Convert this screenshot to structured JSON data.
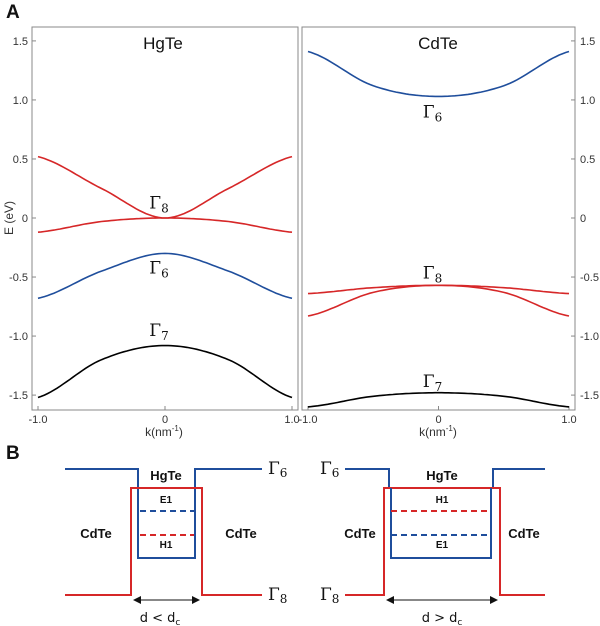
{
  "figure": {
    "panel_a_label": "A",
    "panel_b_label": "B"
  },
  "chart_data": [
    {
      "type": "line",
      "title": "HgTe",
      "xlabel": "k(nm",
      "xlabel_sup": "-1",
      "xlabel_end": ")",
      "ylabel": "E (eV)",
      "xlim": [
        -1.0,
        1.0
      ],
      "ylim": [
        -1.55,
        1.55
      ],
      "x_ticks": [
        "-1.0",
        "0",
        "1.0"
      ],
      "y_ticks": [
        "1.5",
        "1.0",
        "0.5",
        "0",
        "-0.5",
        "-1.0",
        "-1.5"
      ],
      "series": [
        {
          "name": "Γ8 upper",
          "color": "#d62728",
          "x": [
            -1.0,
            -0.5,
            0.0,
            0.5,
            1.0
          ],
          "y": [
            0.52,
            0.25,
            0.0,
            0.25,
            0.52
          ]
        },
        {
          "name": "Γ8 lower",
          "color": "#d62728",
          "x": [
            -1.0,
            -0.5,
            0.0,
            0.5,
            1.0
          ],
          "y": [
            -0.12,
            -0.03,
            0.0,
            -0.03,
            -0.12
          ]
        },
        {
          "name": "Γ6",
          "color": "#1f4e9c",
          "x": [
            -1.0,
            -0.5,
            0.0,
            0.5,
            1.0
          ],
          "y": [
            -0.68,
            -0.45,
            -0.3,
            -0.45,
            -0.68
          ]
        },
        {
          "name": "Γ7",
          "color": "#000000",
          "x": [
            -1.0,
            -0.5,
            0.0,
            0.5,
            1.0
          ],
          "y": [
            -1.52,
            -1.2,
            -1.08,
            -1.2,
            -1.52
          ]
        }
      ],
      "annotations": [
        {
          "text": "Γ",
          "sub": "8",
          "x": 0.0,
          "y": 0.13
        },
        {
          "text": "Γ",
          "sub": "6",
          "x": 0.0,
          "y": -0.42
        },
        {
          "text": "Γ",
          "sub": "7",
          "x": 0.0,
          "y": -0.95
        }
      ]
    },
    {
      "type": "line",
      "title": "CdTe",
      "xlabel": "k(nm",
      "xlabel_sup": "-1",
      "xlabel_end": ")",
      "ylabel": "",
      "xlim": [
        -1.0,
        1.0
      ],
      "ylim": [
        -1.55,
        1.55
      ],
      "x_ticks": [
        "-1.0",
        "0",
        "1.0"
      ],
      "y_ticks": [
        "1.5",
        "1.0",
        "0.5",
        "0",
        "-0.5",
        "-1.0",
        "-1.5"
      ],
      "series": [
        {
          "name": "Γ6",
          "color": "#1f4e9c",
          "x": [
            -1.0,
            -0.5,
            0.0,
            0.5,
            1.0
          ],
          "y": [
            1.41,
            1.12,
            1.03,
            1.12,
            1.41
          ]
        },
        {
          "name": "Γ8 upper",
          "color": "#d62728",
          "x": [
            -1.0,
            -0.5,
            0.0,
            0.5,
            1.0
          ],
          "y": [
            -0.64,
            -0.59,
            -0.57,
            -0.59,
            -0.64
          ]
        },
        {
          "name": "Γ8 lower",
          "color": "#d62728",
          "x": [
            -1.0,
            -0.5,
            0.0,
            0.5,
            1.0
          ],
          "y": [
            -0.83,
            -0.63,
            -0.57,
            -0.63,
            -0.83
          ]
        },
        {
          "name": "Γ7",
          "color": "#000000",
          "x": [
            -1.0,
            -0.5,
            0.0,
            0.5,
            1.0
          ],
          "y": [
            -1.6,
            -1.51,
            -1.48,
            -1.51,
            -1.6
          ]
        }
      ],
      "annotations": [
        {
          "text": "Γ",
          "sub": "6",
          "x": 0.0,
          "y": 0.9
        },
        {
          "text": "Γ",
          "sub": "8",
          "x": 0.0,
          "y": -0.46
        },
        {
          "text": "Γ",
          "sub": "7",
          "x": 0.0,
          "y": -1.38
        }
      ]
    }
  ],
  "diagrams": [
    {
      "name": "normal-regime",
      "well": "HgTe",
      "barrier_left": "CdTe",
      "barrier_right": "CdTe",
      "gamma_symbol": "Γ",
      "top_band_sub": "6",
      "bottom_band_sub": "8",
      "upper_subband": "E1",
      "lower_subband": "H1",
      "width_label": "d < d",
      "width_sub": "c"
    },
    {
      "name": "inverted-regime",
      "well": "HgTe",
      "barrier_left": "CdTe",
      "barrier_right": "CdTe",
      "gamma_symbol": "Γ",
      "top_band_sub": "6",
      "bottom_band_sub": "8",
      "upper_subband": "H1",
      "lower_subband": "E1",
      "width_label": "d > d",
      "width_sub": "c"
    }
  ],
  "colors": {
    "red": "#d62728",
    "blue": "#1f4e9c",
    "black": "#000000",
    "frame": "#888888"
  }
}
